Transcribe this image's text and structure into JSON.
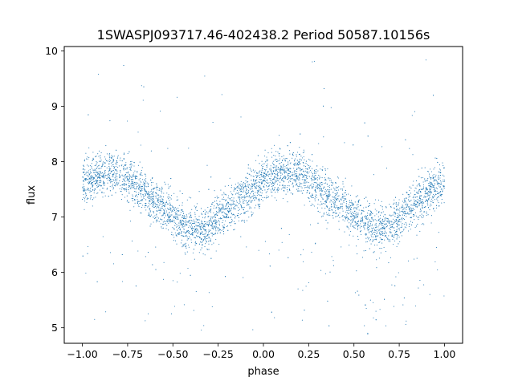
{
  "chart_data": {
    "type": "scatter",
    "title": "1SWASPJ093717.46-402438.2 Period 50587.10156s",
    "xlabel": "phase",
    "ylabel": "flux",
    "xlim": [
      -1.1,
      1.1
    ],
    "ylim": [
      4.72,
      10.08
    ],
    "xticks": [
      -1.0,
      -0.75,
      -0.5,
      -0.25,
      0.0,
      0.25,
      0.5,
      0.75,
      1.0
    ],
    "xtick_labels": [
      "−1.00",
      "−0.75",
      "−0.50",
      "−0.25",
      "0.00",
      "0.25",
      "0.50",
      "0.75",
      "1.00"
    ],
    "yticks": [
      5,
      6,
      7,
      8,
      9,
      10
    ],
    "ytick_labels": [
      "5",
      "6",
      "7",
      "8",
      "9",
      "10"
    ],
    "grid": false,
    "marker_color": "#1f77b4",
    "series": [
      {
        "x": [
          -1.0,
          -0.95,
          -0.9,
          -0.85,
          -0.8,
          -0.75,
          -0.7,
          -0.65,
          -0.6,
          -0.55,
          -0.5,
          -0.45,
          -0.4,
          -0.35,
          -0.3,
          -0.25,
          -0.2,
          -0.15,
          -0.1,
          -0.05,
          0.0,
          0.05,
          0.1,
          0.15,
          0.2,
          0.25,
          0.3,
          0.35,
          0.4,
          0.45,
          0.5,
          0.55,
          0.6,
          0.65,
          0.7,
          0.75,
          0.8,
          0.85,
          0.9,
          0.95,
          1.0
        ],
        "y": [
          7.62,
          7.7,
          7.76,
          7.8,
          7.78,
          7.7,
          7.57,
          7.44,
          7.3,
          7.15,
          7.0,
          6.88,
          6.8,
          6.78,
          6.84,
          6.98,
          7.12,
          7.25,
          7.4,
          7.52,
          7.62,
          7.7,
          7.76,
          7.8,
          7.78,
          7.7,
          7.57,
          7.44,
          7.3,
          7.15,
          7.0,
          6.88,
          6.8,
          6.78,
          6.84,
          6.98,
          7.12,
          7.25,
          7.4,
          7.52,
          7.62
        ]
      }
    ]
  }
}
